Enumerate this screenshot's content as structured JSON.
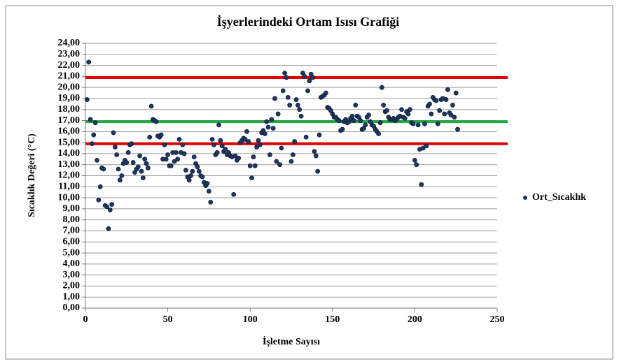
{
  "chart_data": {
    "type": "scatter",
    "title": "İşyerlerindeki Ortam Isısı Grafiği",
    "x_label": "İşletme Sayısı",
    "y_label": "Sıcaklık Değeri (°C)",
    "legend_position": "right",
    "grid": true,
    "xlim": [
      0,
      250
    ],
    "xticks": [
      0,
      50,
      100,
      150,
      200,
      250
    ],
    "ylim": [
      0,
      24
    ],
    "yticks": [
      {
        "value": 0,
        "label": "0,00"
      },
      {
        "value": 1,
        "label": "1,00"
      },
      {
        "value": 2,
        "label": "2,00"
      },
      {
        "value": 3,
        "label": "3,00"
      },
      {
        "value": 4,
        "label": "4,00"
      },
      {
        "value": 5,
        "label": "5,00"
      },
      {
        "value": 6,
        "label": "6,00"
      },
      {
        "value": 7,
        "label": "7,00"
      },
      {
        "value": 8,
        "label": "8,00"
      },
      {
        "value": 9,
        "label": "9,00"
      },
      {
        "value": 10,
        "label": "10,00"
      },
      {
        "value": 11,
        "label": "11,00"
      },
      {
        "value": 12,
        "label": "12,00"
      },
      {
        "value": 13,
        "label": "13,00"
      },
      {
        "value": 14,
        "label": "14,00"
      },
      {
        "value": 15,
        "label": "15,00"
      },
      {
        "value": 16,
        "label": "16,00"
      },
      {
        "value": 17,
        "label": "17,00"
      },
      {
        "value": 18,
        "label": "18,00"
      },
      {
        "value": 19,
        "label": "19,00"
      },
      {
        "value": 20,
        "label": "20,00"
      },
      {
        "value": 21,
        "label": "21,00"
      },
      {
        "value": 22,
        "label": "22,00"
      },
      {
        "value": 23,
        "label": "23,00"
      },
      {
        "value": 24,
        "label": "24,00"
      }
    ],
    "reference_lines": [
      {
        "value": 20.9,
        "color": "#e00000"
      },
      {
        "value": 16.9,
        "color": "#22a845"
      },
      {
        "value": 14.9,
        "color": "#e00000"
      }
    ],
    "series": [
      {
        "name": "Ort_Sıcaklık",
        "color": "#1f3864",
        "x": [
          1,
          2,
          3,
          4,
          5,
          6,
          7,
          8,
          9,
          10,
          11,
          12,
          13,
          14,
          15,
          16,
          17,
          18,
          19,
          20,
          21,
          22,
          23,
          24,
          25,
          26,
          27,
          28,
          29,
          30,
          31,
          32,
          33,
          34,
          35,
          36,
          37,
          38,
          39,
          40,
          41,
          42,
          43,
          44,
          45,
          46,
          47,
          48,
          49,
          50,
          51,
          52,
          53,
          54,
          55,
          56,
          57,
          58,
          59,
          60,
          61,
          62,
          63,
          64,
          65,
          66,
          67,
          68,
          69,
          70,
          71,
          72,
          73,
          74,
          75,
          76,
          77,
          78,
          79,
          80,
          81,
          82,
          83,
          84,
          85,
          86,
          87,
          88,
          89,
          90,
          91,
          92,
          93,
          94,
          95,
          96,
          97,
          98,
          99,
          100,
          101,
          102,
          103,
          104,
          105,
          106,
          107,
          108,
          109,
          110,
          111,
          112,
          113,
          114,
          115,
          116,
          117,
          118,
          119,
          120,
          121,
          122,
          123,
          124,
          125,
          126,
          127,
          128,
          129,
          130,
          131,
          132,
          133,
          134,
          135,
          136,
          137,
          138,
          139,
          140,
          141,
          142,
          143,
          144,
          145,
          146,
          147,
          148,
          149,
          150,
          151,
          152,
          153,
          154,
          155,
          156,
          157,
          158,
          159,
          160,
          161,
          162,
          163,
          164,
          165,
          166,
          167,
          168,
          169,
          170,
          171,
          172,
          173,
          174,
          175,
          176,
          177,
          178,
          179,
          180,
          181,
          182,
          183,
          184,
          185,
          186,
          187,
          188,
          189,
          190,
          191,
          192,
          193,
          194,
          195,
          196,
          197,
          198,
          199,
          200,
          201,
          202,
          203,
          204,
          205,
          206,
          207,
          208,
          209,
          210,
          211,
          212,
          213,
          214,
          215,
          216,
          217,
          218,
          219,
          220,
          221,
          222,
          223,
          224,
          225,
          226
        ],
        "y": [
          18.9,
          22.3,
          17.1,
          14.9,
          15.7,
          16.8,
          13.4,
          9.8,
          11.0,
          12.7,
          12.6,
          9.3,
          9.2,
          7.2,
          8.9,
          9.4,
          15.9,
          14.6,
          13.9,
          12.6,
          11.6,
          12.0,
          13.1,
          13.4,
          13.2,
          14.1,
          14.8,
          14.9,
          13.2,
          12.3,
          12.6,
          12.8,
          13.8,
          12.4,
          11.8,
          13.5,
          13.1,
          12.7,
          15.5,
          18.3,
          17.1,
          17.0,
          16.9,
          15.6,
          15.5,
          15.7,
          13.5,
          14.8,
          13.5,
          13.9,
          12.9,
          12.9,
          14.1,
          13.3,
          14.1,
          13.5,
          15.3,
          14.1,
          14.8,
          14.0,
          12.5,
          11.9,
          11.6,
          12.0,
          12.4,
          13.7,
          13.1,
          12.8,
          12.4,
          12.0,
          11.9,
          11.4,
          11.1,
          11.3,
          10.6,
          9.6,
          15.3,
          14.8,
          13.9,
          14.1,
          16.6,
          15.2,
          14.7,
          14.2,
          14.4,
          13.9,
          14.1,
          13.8,
          13.7,
          10.3,
          13.8,
          13.4,
          13.6,
          15.0,
          15.2,
          15.4,
          15.3,
          16.0,
          15.1,
          12.9,
          11.8,
          13.7,
          12.9,
          14.6,
          15.2,
          14.8,
          15.9,
          16.1,
          15.8,
          16.9,
          16.4,
          13.9,
          17.1,
          16.3,
          19.0,
          13.3,
          17.6,
          13.0,
          14.5,
          19.7,
          21.3,
          20.9,
          19.1,
          18.4,
          13.3,
          13.9,
          15.1,
          18.9,
          18.4,
          18.0,
          17.4,
          21.3,
          21.0,
          15.5,
          19.7,
          20.6,
          21.2,
          20.9,
          14.2,
          13.8,
          12.4,
          15.7,
          19.1,
          19.2,
          19.3,
          19.5,
          18.2,
          18.1,
          17.9,
          17.6,
          17.3,
          17.3,
          17.1,
          17.0,
          16.1,
          16.2,
          16.9,
          17.1,
          16.8,
          16.9,
          17.2,
          17.4,
          17.0,
          18.4,
          17.4,
          17.3,
          17.0,
          16.2,
          16.3,
          16.6,
          17.3,
          17.5,
          16.9,
          16.6,
          16.5,
          16.2,
          16.0,
          15.8,
          16.8,
          20.0,
          18.4,
          17.8,
          17.9,
          17.3,
          17.1,
          17.1,
          17.2,
          17.0,
          17.1,
          17.3,
          17.4,
          18.0,
          17.3,
          17.2,
          17.8,
          17.6,
          18.0,
          16.8,
          16.7,
          13.4,
          13.0,
          16.6,
          14.4,
          11.2,
          14.5,
          16.7,
          14.7,
          18.3,
          18.5,
          17.6,
          19.1,
          18.9,
          18.8,
          16.7,
          17.9,
          18.9,
          19.0,
          17.6,
          18.9,
          19.8,
          17.7,
          17.5,
          18.4,
          17.3,
          19.5,
          16.2
        ]
      }
    ]
  }
}
